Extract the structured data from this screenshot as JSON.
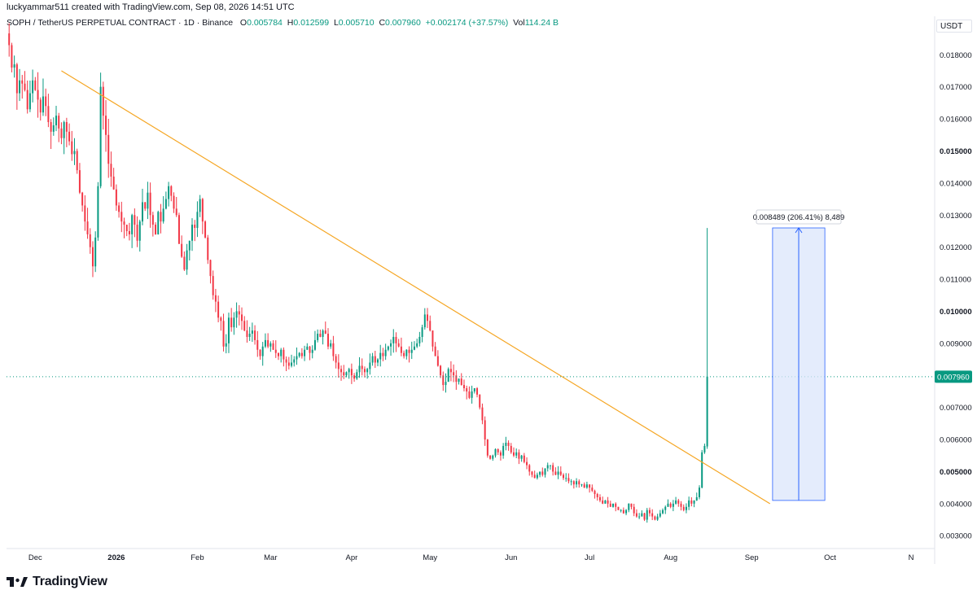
{
  "header": {
    "created_by": "luckyammar511 created with TradingView.com, Sep 08, 2026 14:51 UTC"
  },
  "legend": {
    "symbol": "SOPH / TetherUS PERPETUAL CONTRACT · 1D · Binance",
    "o_label": "O",
    "o_value": "0.005784",
    "h_label": "H",
    "h_value": "0.012599",
    "l_label": "L",
    "l_value": "0.005710",
    "c_label": "C",
    "c_value": "0.007960",
    "change": "+0.002174 (+37.57%)",
    "vol_label": "Vol",
    "vol_value": "114.24 B"
  },
  "currency": "USDT",
  "footer": {
    "brand": "TradingView"
  },
  "colors": {
    "up": "#089981",
    "down": "#f23645",
    "trendline": "#f5a623",
    "measure_fill": "#dbe6fb",
    "measure_stroke": "#2962ff",
    "last_price_line": "#089981"
  },
  "chart_data": {
    "type": "candlestick",
    "price_axis": {
      "min": 0.0026,
      "max": 0.0192,
      "ticks": [
        {
          "value": 0.018,
          "label": "0.018000",
          "bold": false
        },
        {
          "value": 0.017,
          "label": "0.017000",
          "bold": false
        },
        {
          "value": 0.016,
          "label": "0.016000",
          "bold": false
        },
        {
          "value": 0.015,
          "label": "0.015000",
          "bold": true
        },
        {
          "value": 0.014,
          "label": "0.014000",
          "bold": false
        },
        {
          "value": 0.013,
          "label": "0.013000",
          "bold": false
        },
        {
          "value": 0.012,
          "label": "0.012000",
          "bold": false
        },
        {
          "value": 0.011,
          "label": "0.011000",
          "bold": false
        },
        {
          "value": 0.01,
          "label": "0.010000",
          "bold": true
        },
        {
          "value": 0.009,
          "label": "0.009000",
          "bold": false
        },
        {
          "value": 0.007,
          "label": "0.007000",
          "bold": false
        },
        {
          "value": 0.006,
          "label": "0.006000",
          "bold": false
        },
        {
          "value": 0.005,
          "label": "0.005000",
          "bold": true
        },
        {
          "value": 0.004,
          "label": "0.004000",
          "bold": false
        },
        {
          "value": 0.003,
          "label": "0.003000",
          "bold": false
        }
      ]
    },
    "time_axis": {
      "start": "2025-11-20",
      "end": "2026-11-10",
      "ticks": [
        {
          "date": "2025-12-01",
          "label": "Dec",
          "bold": false
        },
        {
          "date": "2026-01-01",
          "label": "2026",
          "bold": true
        },
        {
          "date": "2026-02-01",
          "label": "Feb",
          "bold": false
        },
        {
          "date": "2026-03-01",
          "label": "Mar",
          "bold": false
        },
        {
          "date": "2026-04-01",
          "label": "Apr",
          "bold": false
        },
        {
          "date": "2026-05-01",
          "label": "May",
          "bold": false
        },
        {
          "date": "2026-06-01",
          "label": "Jun",
          "bold": false
        },
        {
          "date": "2026-07-01",
          "label": "Jul",
          "bold": false
        },
        {
          "date": "2026-08-01",
          "label": "Aug",
          "bold": false
        },
        {
          "date": "2026-09-01",
          "label": "Sep",
          "bold": false
        },
        {
          "date": "2026-10-01",
          "label": "Oct",
          "bold": false
        },
        {
          "date": "2026-11-01",
          "label": "N",
          "bold": false
        }
      ]
    },
    "series": {
      "first_date": "2025-11-21",
      "close": [
        0.0183,
        0.0176,
        0.0177,
        0.0168,
        0.0172,
        0.0171,
        0.0169,
        0.0163,
        0.0168,
        0.0172,
        0.0169,
        0.0166,
        0.0162,
        0.0167,
        0.0164,
        0.0159,
        0.0156,
        0.0158,
        0.0161,
        0.0157,
        0.0154,
        0.0159,
        0.0156,
        0.0153,
        0.0149,
        0.015,
        0.0144,
        0.0137,
        0.0133,
        0.0128,
        0.0124,
        0.012,
        0.0114,
        0.0123,
        0.0139,
        0.017,
        0.0161,
        0.0155,
        0.0146,
        0.0142,
        0.0138,
        0.0133,
        0.0131,
        0.0128,
        0.0127,
        0.0125,
        0.0124,
        0.013,
        0.0127,
        0.0122,
        0.0128,
        0.0134,
        0.0132,
        0.0137,
        0.013,
        0.0127,
        0.0124,
        0.0131,
        0.0128,
        0.0132,
        0.0135,
        0.0139,
        0.0136,
        0.0132,
        0.013,
        0.0121,
        0.0117,
        0.0113,
        0.0119,
        0.0122,
        0.0127,
        0.0126,
        0.0131,
        0.0135,
        0.0128,
        0.0123,
        0.0116,
        0.0111,
        0.0105,
        0.0103,
        0.0098,
        0.0097,
        0.0089,
        0.009,
        0.0098,
        0.0095,
        0.0098,
        0.01,
        0.0099,
        0.0097,
        0.0094,
        0.0092,
        0.0093,
        0.0094,
        0.0091,
        0.0088,
        0.0086,
        0.0089,
        0.0091,
        0.0089,
        0.009,
        0.0088,
        0.0087,
        0.0086,
        0.0088,
        0.0085,
        0.0084,
        0.0083,
        0.0084,
        0.0085,
        0.0086,
        0.0087,
        0.0086,
        0.0088,
        0.0089,
        0.0087,
        0.0088,
        0.0091,
        0.0093,
        0.0092,
        0.0094,
        0.0093,
        0.0089,
        0.009,
        0.0086,
        0.0084,
        0.0082,
        0.0081,
        0.008,
        0.0081,
        0.0082,
        0.008,
        0.0079,
        0.0081,
        0.0083,
        0.0082,
        0.0081,
        0.0082,
        0.0084,
        0.0086,
        0.0084,
        0.0085,
        0.0087,
        0.0086,
        0.0088,
        0.0089,
        0.009,
        0.0092,
        0.009,
        0.0089,
        0.0087,
        0.0086,
        0.0088,
        0.0087,
        0.0088,
        0.0089,
        0.009,
        0.0092,
        0.0095,
        0.0099,
        0.0097,
        0.0094,
        0.0089,
        0.0086,
        0.0083,
        0.008,
        0.0077,
        0.0078,
        0.0082,
        0.0081,
        0.008,
        0.0078,
        0.0079,
        0.0077,
        0.0076,
        0.0075,
        0.0073,
        0.0075,
        0.0076,
        0.0074,
        0.007,
        0.0066,
        0.006,
        0.0055,
        0.0054,
        0.0055,
        0.0057,
        0.0056,
        0.0055,
        0.0058,
        0.0059,
        0.0058,
        0.0056,
        0.0055,
        0.0056,
        0.0054,
        0.0055,
        0.0053,
        0.0052,
        0.005,
        0.0049,
        0.0048,
        0.0049,
        0.005,
        0.0049,
        0.0051,
        0.0052,
        0.0052,
        0.005,
        0.0049,
        0.005,
        0.0049,
        0.0048,
        0.0048,
        0.0047,
        0.0047,
        0.0046,
        0.0047,
        0.0046,
        0.0046,
        0.0045,
        0.0046,
        0.0045,
        0.0044,
        0.0043,
        0.0042,
        0.0041,
        0.004,
        0.0041,
        0.004,
        0.0039,
        0.004,
        0.0039,
        0.0038,
        0.0038,
        0.0037,
        0.0038,
        0.004,
        0.0039,
        0.0037,
        0.0036,
        0.0036,
        0.0037,
        0.0035,
        0.0038,
        0.0037,
        0.0036,
        0.0035,
        0.0036,
        0.0037,
        0.0038,
        0.0039,
        0.004,
        0.0039,
        0.004,
        0.0041,
        0.004,
        0.0039,
        0.0038,
        0.0039,
        0.0041,
        0.004,
        0.0041,
        0.0042,
        0.0045,
        0.0056,
        0.0058,
        0.008
      ],
      "last": {
        "open": 0.005784,
        "high": 0.012599,
        "low": 0.00571,
        "close": 0.00796
      }
    },
    "trendline": {
      "start": {
        "date": "2025-12-11",
        "price": 0.0175
      },
      "end": {
        "date": "2026-09-08",
        "price": 0.004
      }
    },
    "last_price": {
      "value": 0.00796,
      "label": "0.007960"
    },
    "measure": {
      "from": {
        "date": "2026-09-09",
        "price": 0.0041
      },
      "to": {
        "date": "2026-09-29",
        "price": 0.0126
      },
      "label": "0.008489 (206.41%) 8,489"
    }
  }
}
